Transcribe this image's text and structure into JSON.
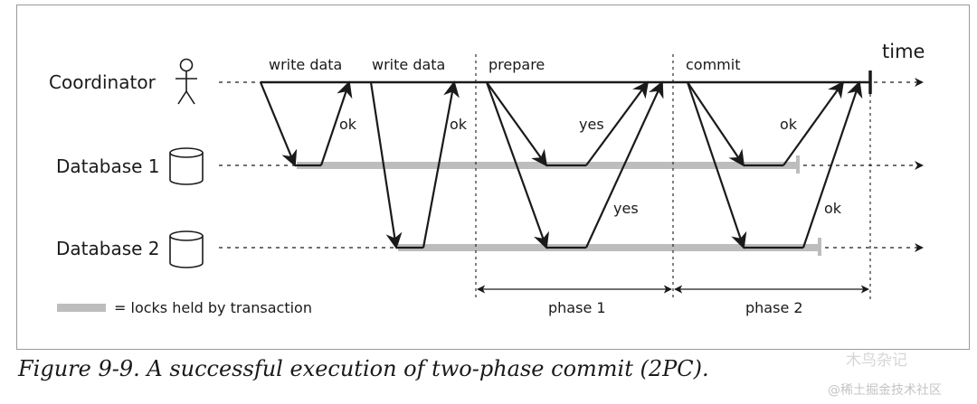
{
  "diagram": {
    "time_label": "time",
    "participants": {
      "coordinator": "Coordinator",
      "database1": "Database 1",
      "database2": "Database 2"
    },
    "messages": {
      "write_data_1": "write data",
      "write_data_2": "write data",
      "prepare": "prepare",
      "commit": "commit",
      "ok_1": "ok",
      "ok_2": "ok",
      "yes_1": "yes",
      "yes_2": "yes",
      "ok_3": "ok",
      "ok_4": "ok"
    },
    "phases": {
      "phase1": "phase 1",
      "phase2": "phase 2"
    },
    "legend": {
      "text": "= locks held by transaction"
    },
    "colors": {
      "lock_bar": "#bdbdbd",
      "line": "#1a1a1a"
    }
  },
  "caption": "Figure 9-9. A successful execution of two-phase commit (2PC).",
  "watermark": {
    "line1": "木鸟杂记",
    "line2": "@稀土掘金技术社区"
  }
}
